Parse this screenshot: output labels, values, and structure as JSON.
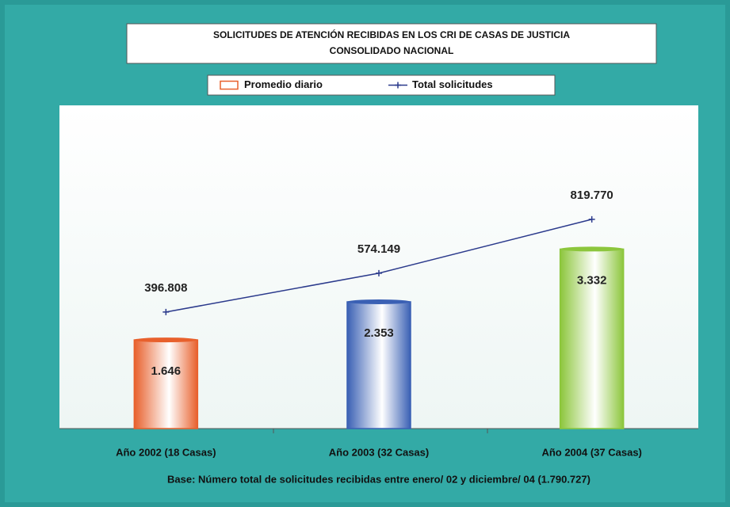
{
  "chart_data": {
    "type": "bar",
    "title": "SOLICITUDES DE ATENCIÓN RECIBIDAS EN LOS CRI DE CASAS DE JUSTICIA",
    "subtitle": "CONSOLIDADO NACIONAL",
    "categories": [
      "Año 2002 (18 Casas)",
      "Año 2003 (32 Casas)",
      "Año 2004  (37 Casas)"
    ],
    "series": [
      {
        "name": "Promedio diario",
        "type": "bar",
        "colors": [
          "#e8602c",
          "#3a60b4",
          "#8cc63c"
        ],
        "values": [
          1646,
          2353,
          3332
        ],
        "value_labels": [
          "1.646",
          "2.353",
          "3.332"
        ]
      },
      {
        "name": "Total solicitudes",
        "type": "line",
        "axis": "y2",
        "color": "#2b3a8c",
        "values": [
          396808,
          574149,
          819770
        ],
        "value_labels": [
          "396.808",
          "574.149",
          "819.770"
        ]
      }
    ],
    "ylim": [
      0,
      6000
    ],
    "y2lim": [
      -135000,
      1340000
    ],
    "footnote": "Base: Número total de solicitudes recibidas entre enero/ 02 y diciembre/ 04 (1.790.727)"
  }
}
